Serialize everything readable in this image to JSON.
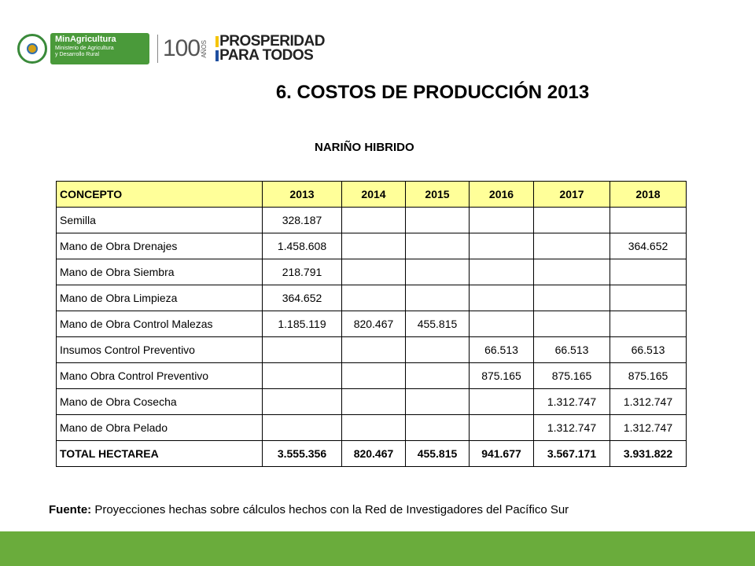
{
  "header": {
    "logo_ministry_name": "MinAgricultura",
    "logo_ministry_line2": "Ministerio de Agricultura",
    "logo_ministry_line3": "y Desarrollo Rural",
    "logo_100": "100",
    "logo_anos": "AÑOS",
    "logo_prosperidad_1": "PROSPERIDAD",
    "logo_prosperidad_2": "PARA TODOS",
    "colors": {
      "ministry_green": "#4a9a3a",
      "flag_yellow": "#f5c400",
      "flag_blue": "#1f4fa0",
      "flag_red": "#d62828"
    }
  },
  "title": "6. COSTOS DE PRODUCCIÓN 2013",
  "subtitle": "NARIÑO HIBRIDO",
  "table": {
    "columns": [
      "CONCEPTO",
      "2013",
      "2014",
      "2015",
      "2016",
      "2017",
      "2018"
    ],
    "header_color": "#ffff99",
    "rows": [
      {
        "concept": "Semilla",
        "values": [
          "328.187",
          "",
          "",
          "",
          "",
          ""
        ]
      },
      {
        "concept": "Mano de Obra Drenajes",
        "values": [
          "1.458.608",
          "",
          "",
          "",
          "",
          "364.652"
        ]
      },
      {
        "concept": "Mano de Obra Siembra",
        "values": [
          "218.791",
          "",
          "",
          "",
          "",
          ""
        ]
      },
      {
        "concept": "Mano de Obra Limpieza",
        "values": [
          "364.652",
          "",
          "",
          "",
          "",
          ""
        ]
      },
      {
        "concept": "Mano de Obra Control Malezas",
        "values": [
          "1.185.119",
          "820.467",
          "455.815",
          "",
          "",
          ""
        ]
      },
      {
        "concept": "Insumos Control Preventivo",
        "values": [
          "",
          "",
          "",
          "66.513",
          "66.513",
          "66.513"
        ]
      },
      {
        "concept": "Mano Obra Control Preventivo",
        "values": [
          "",
          "",
          "",
          "875.165",
          "875.165",
          "875.165"
        ]
      },
      {
        "concept": "Mano de Obra Cosecha",
        "values": [
          "",
          "",
          "",
          "",
          "1.312.747",
          "1.312.747"
        ]
      },
      {
        "concept": "Mano de Obra Pelado",
        "values": [
          "",
          "",
          "",
          "",
          "1.312.747",
          "1.312.747"
        ]
      }
    ],
    "total": {
      "concept": "TOTAL HECTAREA",
      "values": [
        "3.555.356",
        "820.467",
        "455.815",
        "941.677",
        "3.567.171",
        "3.931.822"
      ]
    }
  },
  "source": {
    "label": "Fuente:",
    "text": " Proyecciones hechas sobre cálculos hechos con la Red de Investigadores del Pacífico Sur"
  },
  "footer": {
    "band_color": "#6aac3c"
  }
}
